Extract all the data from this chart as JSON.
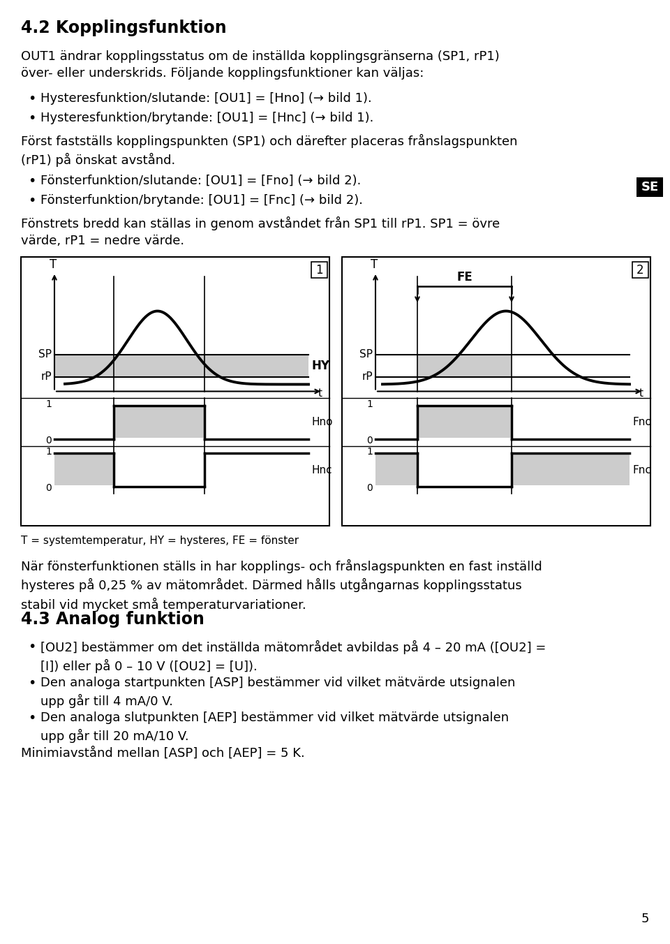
{
  "title": "4.2 Kopplingsfunktion",
  "bg_color": "#ffffff",
  "text_color": "#000000",
  "gray_fill": "#cccccc",
  "se_badge_color": "#000000",
  "se_text_color": "#ffffff",
  "page_number": "5",
  "body1": "OUT1 ändrar kopplingsstatus om de inställda kopplingsgränserna (SP1, rP1)\növer- eller underskrids. Följande kopplingsfunktioner kan väljas:",
  "bullet1": "Hysteresfunktion/slutande: [OU1] = [Hno] (→ bild 1).",
  "bullet2": "Hysteresfunktion/brytande: [OU1] = [Hnc] (→ bild 1).",
  "body2": "Först fastställs kopplingspunkten (SP1) och därefter placeras frånslagspunkten\n(rP1) på önskat avstånd.",
  "bullet3": "Fönsterfunktion/slutande: [OU1] = [Fno] (→ bild 2).",
  "bullet4": "Fönsterfunktion/brytande: [OU1] = [Fnc] (→ bild 2).",
  "body3": "Fönstrets bredd kan ställas in genom avståndet från SP1 till rP1. SP1 = övre\nvärde, rP1 = nedre värde.",
  "caption": "T = systemtemperatur, HY = hysteres, FE = fönster",
  "body4": "När fönsterfunktionen ställs in har kopplings- och frånslagspunkten en fast inställd\nhysteres på 0,25 % av mätområdet. Därmed hålls utgångarnas kopplingsstatus\nstabil vid mycket små temperaturvariationer.",
  "heading2": "4.3 Analog funktion",
  "bullet5": "[OU2] bestämmer om det inställda mätområdet avbildas på 4 – 20 mA ([OU2] =\n[I]) eller på 0 – 10 V ([OU2] = [U]).",
  "bullet6": "Den analoga startpunkten [ASP] bestämmer vid vilket mätvärde utsignalen\nupp går till 4 mA/0 V.",
  "bullet7": "Den analoga slutpunkten [AEP] bestämmer vid vilket mätvärde utsignalen\nupp går till 20 mA/10 V.",
  "body5": "Minimiavstånd mellan [ASP] och [AEP] = 5 K."
}
